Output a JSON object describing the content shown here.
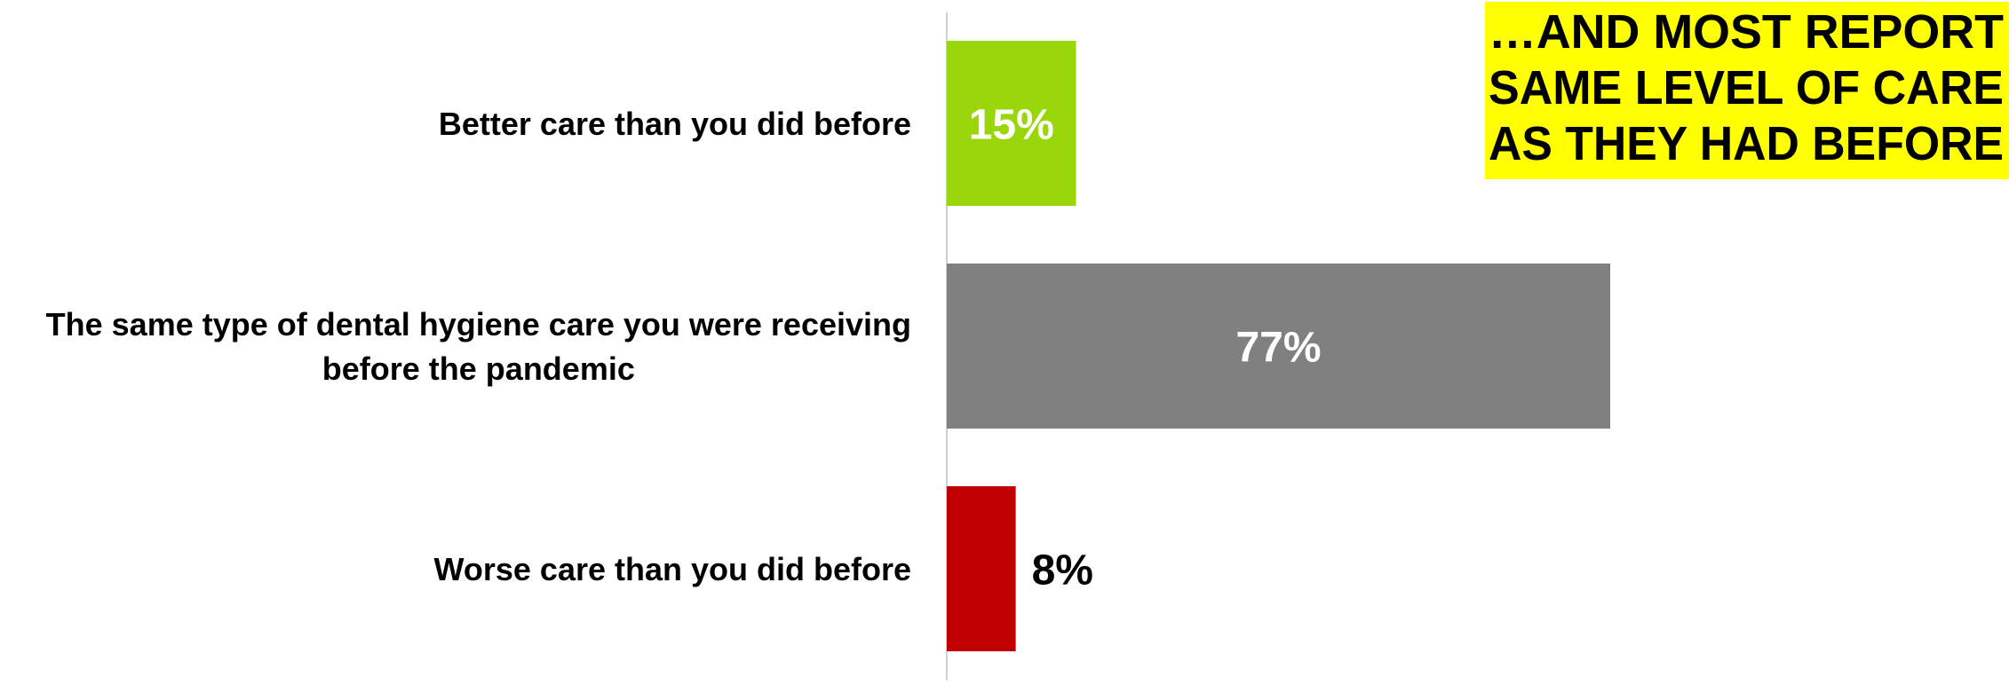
{
  "headline": {
    "lines": [
      "…AND MOST REPORT",
      "SAME LEVEL OF CARE",
      "AS THEY HAD BEFORE"
    ],
    "background_color": "#FFFF00",
    "text_color": "#000000"
  },
  "chart_data": {
    "type": "bar",
    "orientation": "horizontal",
    "title": "",
    "xlabel": "",
    "ylabel": "",
    "xlim": [
      0,
      100
    ],
    "grid": false,
    "legend": "none",
    "categories": [
      [
        "Better care than you did before"
      ],
      [
        "The same type of dental hygiene care you were receiving",
        "before the pandemic"
      ],
      [
        "Worse care than you did before"
      ]
    ],
    "values": [
      15,
      77,
      8
    ],
    "data_labels": [
      "15%",
      "77%",
      "8%"
    ],
    "colors": [
      "#99D60A",
      "#808080",
      "#C00000"
    ]
  }
}
